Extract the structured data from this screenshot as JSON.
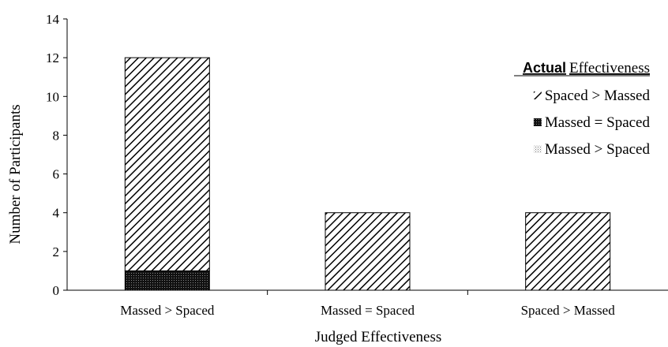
{
  "chart_data": {
    "type": "bar",
    "stacked": true,
    "xlabel": "Judged Effectiveness",
    "ylabel": "Number of Participants",
    "ylim": [
      0,
      14
    ],
    "yticks": [
      "0",
      "2",
      "4",
      "6",
      "8",
      "10",
      "12",
      "14"
    ],
    "categories": [
      "Massed > Spaced",
      "Massed = Spaced",
      "Spaced > Massed"
    ],
    "series": [
      {
        "name": "Massed > Spaced",
        "values": [
          0,
          0,
          0
        ],
        "pattern": "dotted",
        "color": "#bbbbbb"
      },
      {
        "name": "Massed = Spaced",
        "values": [
          1,
          0,
          0
        ],
        "pattern": "dense-dark",
        "color": "#222222"
      },
      {
        "name": "Spaced > Massed",
        "values": [
          11,
          4,
          4
        ],
        "pattern": "diagonal-hatch",
        "color": "#000000"
      }
    ],
    "legend": {
      "title_bold": "Actual",
      "title_rest": "Effectiveness",
      "placement": "right",
      "order": [
        2,
        1,
        0
      ]
    },
    "grid": false
  }
}
